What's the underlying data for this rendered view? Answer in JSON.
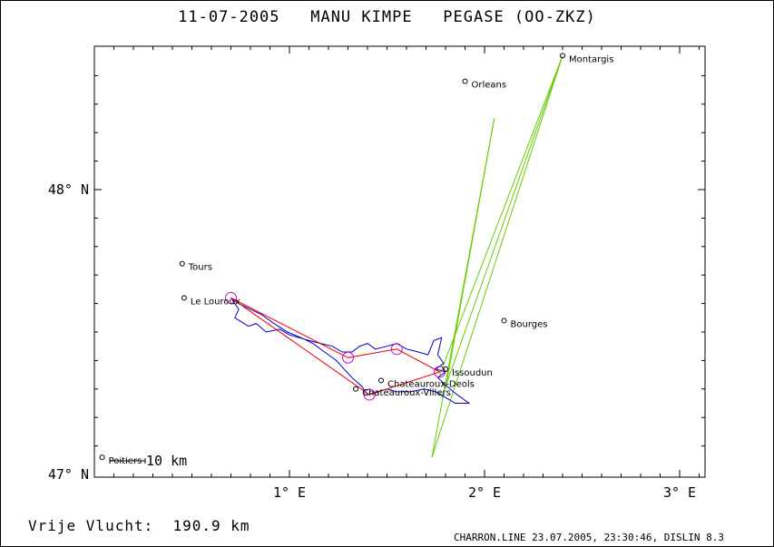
{
  "title": "11-07-2005   MANU KIMPE   PEGASE (OO-ZKZ)",
  "footer": {
    "distance_label": "Vrije Vlucht:",
    "distance_value": "190.9 km",
    "source_info": "CHARRON.LINE 23.07.2005, 23:30:46, DISLIN 8.3"
  },
  "scale_bar": {
    "label": "10 km"
  },
  "map": {
    "x_axis": {
      "ticks": [
        {
          "value": 1,
          "label": "1° E"
        },
        {
          "value": 2,
          "label": "2° E"
        },
        {
          "value": 3,
          "label": "3° E"
        }
      ]
    },
    "y_axis": {
      "ticks": [
        {
          "value": 47,
          "label": "47° N"
        },
        {
          "value": 48,
          "label": "48° N"
        }
      ]
    },
    "lon_range": [
      0.0,
      3.13
    ],
    "lat_range": [
      47.0,
      48.5
    ],
    "colors": {
      "track": "#0000cc",
      "route": "#ee0000",
      "turnpoint": "#cc00cc",
      "glide": "#66cc00",
      "axis": "#000000"
    },
    "cities": [
      {
        "name": "Montargis",
        "lon": 2.4,
        "lat": 48.47
      },
      {
        "name": "Orleans",
        "lon": 1.9,
        "lat": 48.38
      },
      {
        "name": "Tours",
        "lon": 0.45,
        "lat": 47.74
      },
      {
        "name": "Le Louroux",
        "lon": 0.46,
        "lat": 47.62
      },
      {
        "name": "Bourges",
        "lon": 2.1,
        "lat": 47.54
      },
      {
        "name": "Issoudun",
        "lon": 1.8,
        "lat": 47.37
      },
      {
        "name": "Chateauroux-Deols",
        "lon": 1.47,
        "lat": 47.33
      },
      {
        "name": "Chateauroux-Villers",
        "lon": 1.34,
        "lat": 47.3
      },
      {
        "name": "Poitiers",
        "lon": 0.04,
        "lat": 47.06
      }
    ],
    "turnpoints": [
      {
        "lon": 0.7,
        "lat": 47.62
      },
      {
        "lon": 1.3,
        "lat": 47.41
      },
      {
        "lon": 1.55,
        "lat": 47.44
      },
      {
        "lon": 1.77,
        "lat": 47.36
      },
      {
        "lon": 1.41,
        "lat": 47.28
      }
    ],
    "route": [
      {
        "lon": 0.7,
        "lat": 47.62
      },
      {
        "lon": 1.3,
        "lat": 47.41
      },
      {
        "lon": 1.55,
        "lat": 47.44
      },
      {
        "lon": 1.77,
        "lat": 47.36
      },
      {
        "lon": 1.41,
        "lat": 47.28
      },
      {
        "lon": 0.7,
        "lat": 47.62
      }
    ],
    "glide_lines": [
      [
        {
          "lon": 1.73,
          "lat": 47.06
        },
        {
          "lon": 2.4,
          "lat": 48.47
        }
      ],
      [
        {
          "lon": 1.73,
          "lat": 47.06
        },
        {
          "lon": 2.05,
          "lat": 48.25
        }
      ],
      [
        {
          "lon": 1.78,
          "lat": 47.27
        },
        {
          "lon": 2.4,
          "lat": 48.47
        }
      ],
      [
        {
          "lon": 1.77,
          "lat": 47.35
        },
        {
          "lon": 2.4,
          "lat": 48.47
        }
      ],
      [
        {
          "lon": 1.8,
          "lat": 47.3
        },
        {
          "lon": 2.05,
          "lat": 48.25
        }
      ]
    ],
    "track": [
      {
        "lon": 0.7,
        "lat": 47.62
      },
      {
        "lon": 0.74,
        "lat": 47.58
      },
      {
        "lon": 0.72,
        "lat": 47.55
      },
      {
        "lon": 0.79,
        "lat": 47.52
      },
      {
        "lon": 0.83,
        "lat": 47.53
      },
      {
        "lon": 0.88,
        "lat": 47.5
      },
      {
        "lon": 0.95,
        "lat": 47.51
      },
      {
        "lon": 1.0,
        "lat": 47.49
      },
      {
        "lon": 1.05,
        "lat": 47.48
      },
      {
        "lon": 1.1,
        "lat": 47.47
      },
      {
        "lon": 1.16,
        "lat": 47.46
      },
      {
        "lon": 1.22,
        "lat": 47.45
      },
      {
        "lon": 1.27,
        "lat": 47.43
      },
      {
        "lon": 1.32,
        "lat": 47.43
      },
      {
        "lon": 1.36,
        "lat": 47.45
      },
      {
        "lon": 1.4,
        "lat": 47.46
      },
      {
        "lon": 1.44,
        "lat": 47.44
      },
      {
        "lon": 1.5,
        "lat": 47.45
      },
      {
        "lon": 1.55,
        "lat": 47.46
      },
      {
        "lon": 1.6,
        "lat": 47.44
      },
      {
        "lon": 1.66,
        "lat": 47.43
      },
      {
        "lon": 1.71,
        "lat": 47.42
      },
      {
        "lon": 1.74,
        "lat": 47.47
      },
      {
        "lon": 1.78,
        "lat": 47.48
      },
      {
        "lon": 1.76,
        "lat": 47.42
      },
      {
        "lon": 1.79,
        "lat": 47.39
      },
      {
        "lon": 1.75,
        "lat": 47.37
      },
      {
        "lon": 1.8,
        "lat": 47.36
      },
      {
        "lon": 1.76,
        "lat": 47.34
      },
      {
        "lon": 1.79,
        "lat": 47.32
      },
      {
        "lon": 1.84,
        "lat": 47.29
      },
      {
        "lon": 1.88,
        "lat": 47.27
      },
      {
        "lon": 1.92,
        "lat": 47.25
      },
      {
        "lon": 1.85,
        "lat": 47.25
      },
      {
        "lon": 1.8,
        "lat": 47.27
      },
      {
        "lon": 1.75,
        "lat": 47.29
      },
      {
        "lon": 1.69,
        "lat": 47.3
      },
      {
        "lon": 1.62,
        "lat": 47.29
      },
      {
        "lon": 1.55,
        "lat": 47.29
      },
      {
        "lon": 1.5,
        "lat": 47.3
      },
      {
        "lon": 1.45,
        "lat": 47.29
      },
      {
        "lon": 1.4,
        "lat": 47.28
      },
      {
        "lon": 1.37,
        "lat": 47.31
      },
      {
        "lon": 1.32,
        "lat": 47.34
      },
      {
        "lon": 1.28,
        "lat": 47.37
      },
      {
        "lon": 1.24,
        "lat": 47.4
      },
      {
        "lon": 1.18,
        "lat": 47.43
      },
      {
        "lon": 1.12,
        "lat": 47.46
      },
      {
        "lon": 1.06,
        "lat": 47.48
      },
      {
        "lon": 0.99,
        "lat": 47.5
      },
      {
        "lon": 0.92,
        "lat": 47.53
      },
      {
        "lon": 0.86,
        "lat": 47.56
      },
      {
        "lon": 0.8,
        "lat": 47.58
      },
      {
        "lon": 0.74,
        "lat": 47.6
      },
      {
        "lon": 0.7,
        "lat": 47.62
      }
    ]
  }
}
